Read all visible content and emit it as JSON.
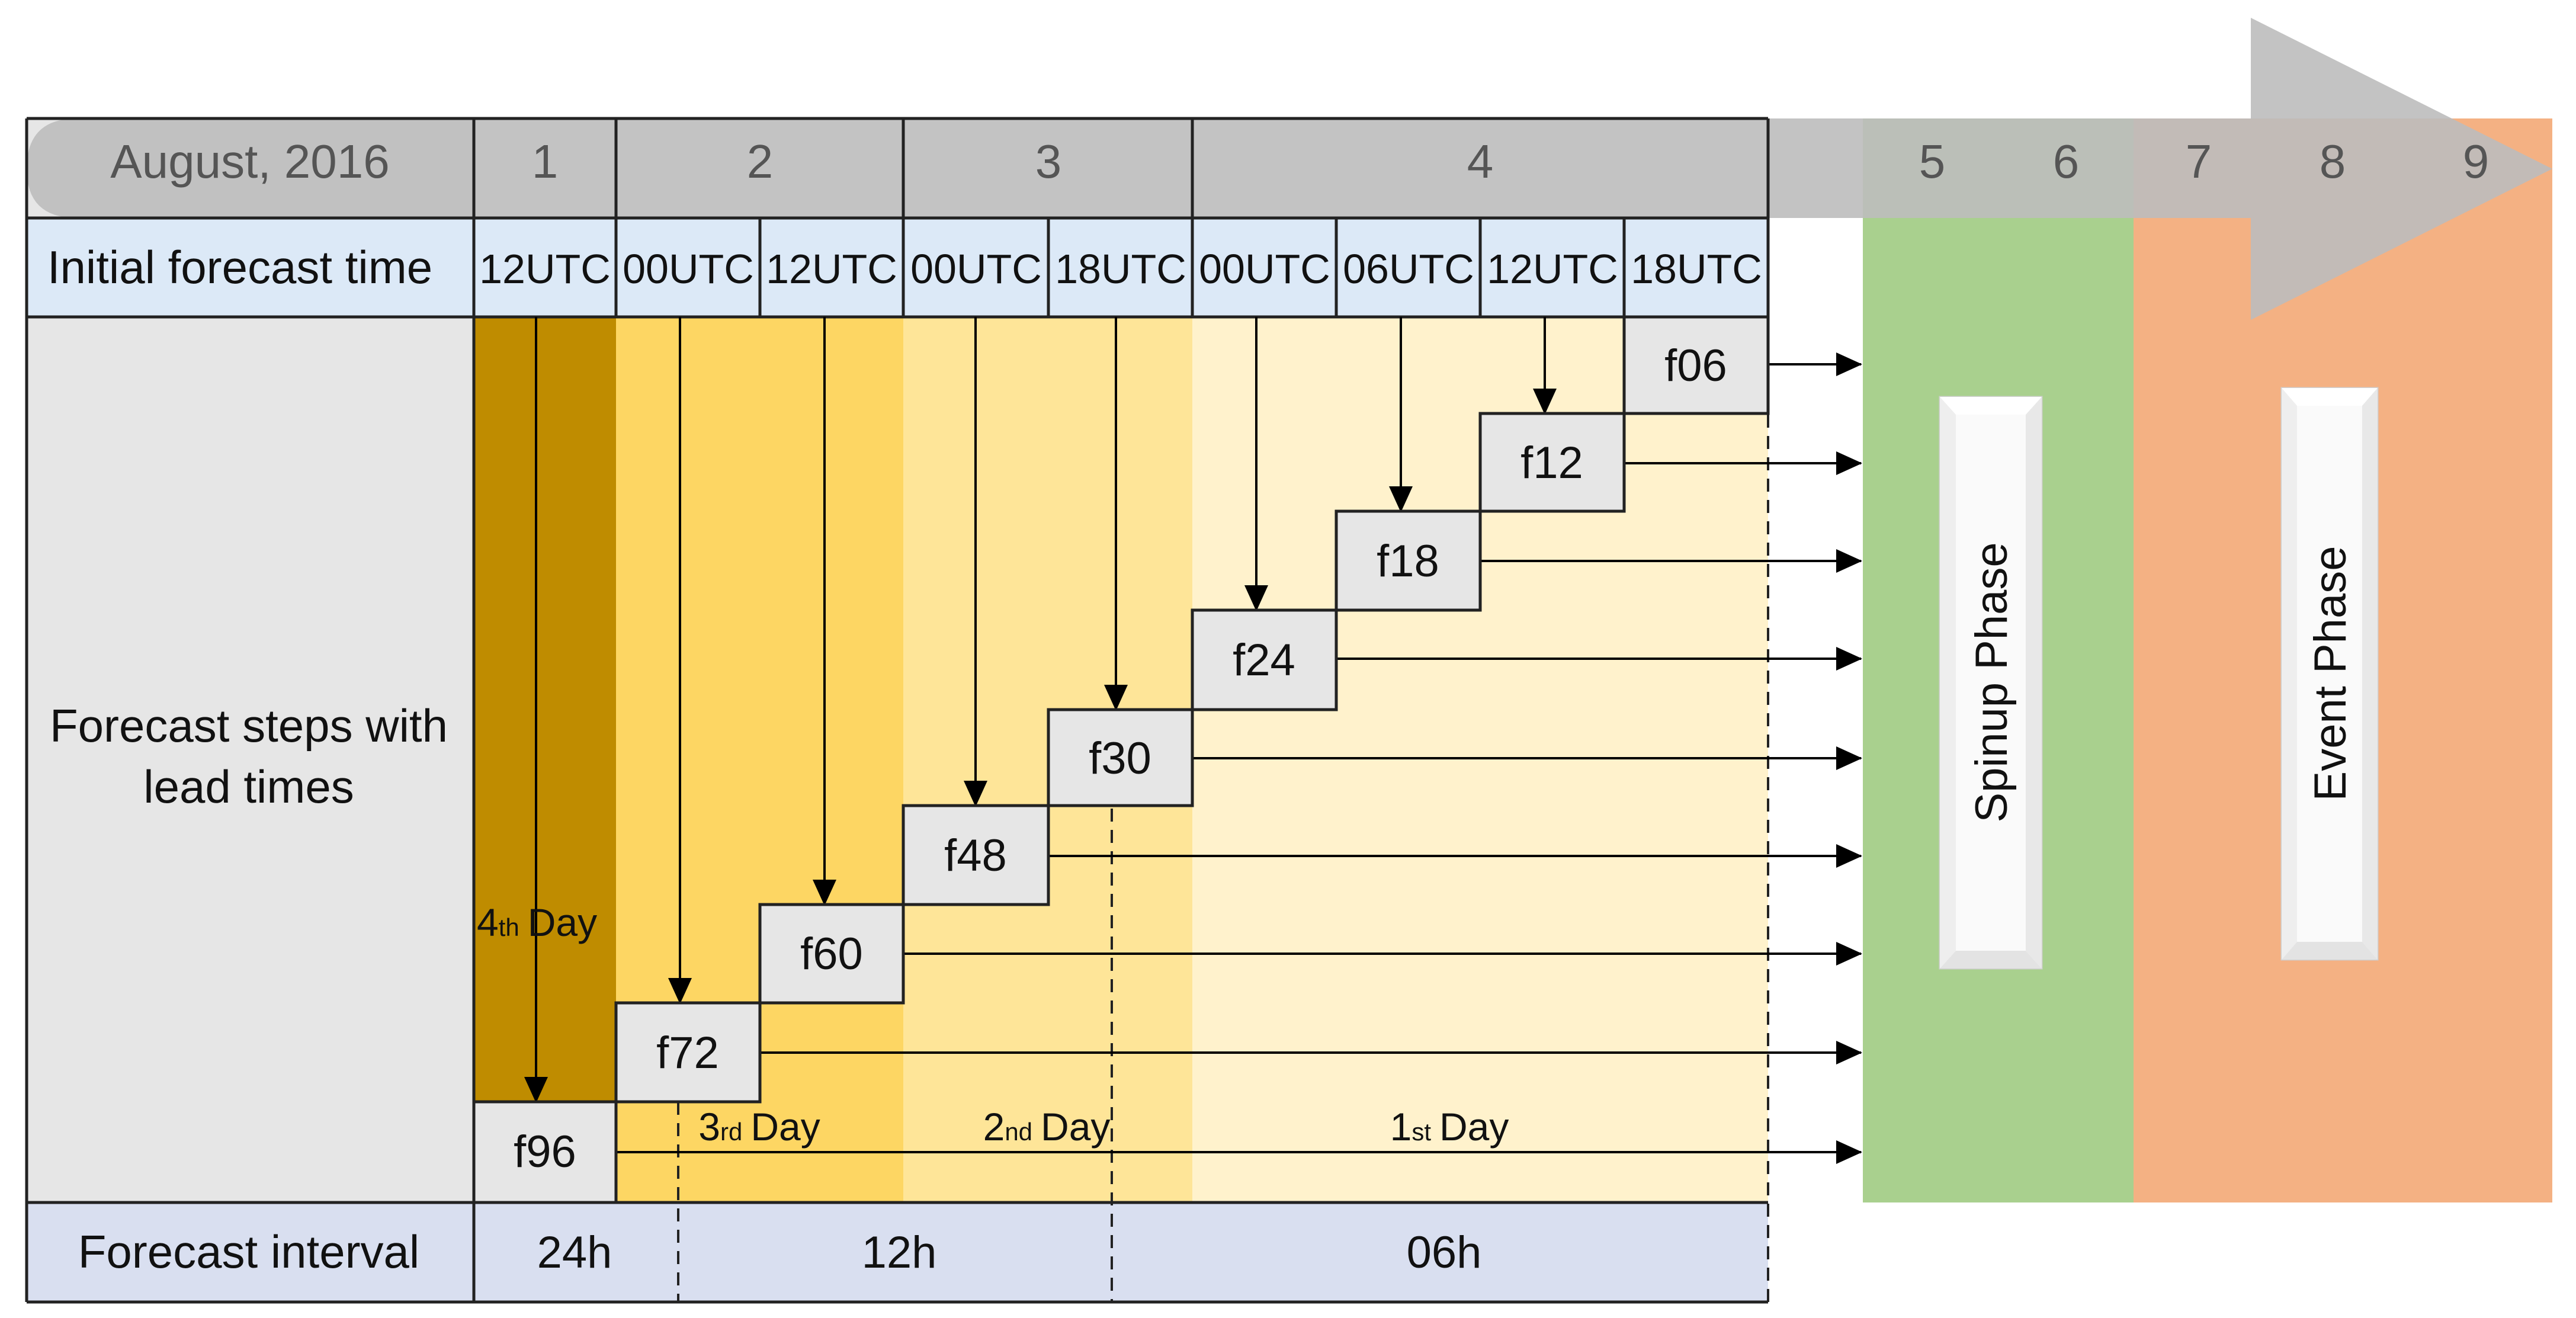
{
  "timeline": {
    "month_label": "August, 2016",
    "days": [
      "1",
      "2",
      "3",
      "4",
      "5",
      "6",
      "7",
      "8",
      "9"
    ]
  },
  "rows": {
    "init_label": "Initial forecast time",
    "steps_label_line1": "Forecast steps with",
    "steps_label_line2": "lead times",
    "interval_label": "Forecast interval"
  },
  "init_times": [
    "12UTC",
    "00UTC",
    "12UTC",
    "00UTC",
    "18UTC",
    "00UTC",
    "06UTC",
    "12UTC",
    "18UTC"
  ],
  "steps": [
    "f96",
    "f72",
    "f60",
    "f48",
    "f30",
    "f24",
    "f18",
    "f12",
    "f06"
  ],
  "day_labels": [
    {
      "num": "4",
      "suffix": "th",
      "word": "Day"
    },
    {
      "num": "3",
      "suffix": "rd",
      "word": "Day"
    },
    {
      "num": "2",
      "suffix": "nd",
      "word": "Day"
    },
    {
      "num": "1",
      "suffix": "st",
      "word": "Day"
    }
  ],
  "intervals": [
    "24h",
    "12h",
    "06h"
  ],
  "phases": {
    "spinup": "Spinup Phase",
    "event": "Event Phase"
  },
  "colors": {
    "band_grey": "#bdbdbd",
    "init_row": "#dce9f7",
    "label_col": "#e6e6e6",
    "interval_row": "#d9dff0",
    "day4": "#bf8c00",
    "day3": "#fdd663",
    "day2": "#fee598",
    "day1": "#fff2cc",
    "step_box": "#e6e6e6",
    "spinup": "#a9d08e",
    "event": "#f4b183"
  }
}
